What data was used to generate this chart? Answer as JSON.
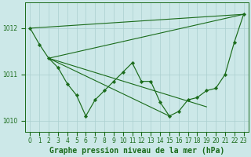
{
  "title": "Graphe pression niveau de la mer (hPa)",
  "bg_color": "#cce8e8",
  "grid_color": "#aacfcf",
  "line_color": "#1a6b1a",
  "marker_color": "#1a6b1a",
  "series": [
    [
      1012.0,
      1011.65,
      1011.35,
      1011.15,
      1010.8,
      1010.55,
      1010.1,
      1010.45,
      1010.65,
      1010.85,
      1011.05,
      1011.25,
      1010.85,
      1010.85,
      1010.4,
      1010.1,
      1010.2,
      1010.45,
      1010.5,
      1010.65,
      1010.7,
      1011.0,
      1011.7,
      1012.3
    ],
    [
      1012.0,
      1011.65,
      1011.35,
      1011.15,
      1011.15,
      1011.15,
      1011.15,
      1011.05,
      1010.95,
      1010.85,
      1010.75,
      1010.65,
      1010.55,
      1010.5,
      1010.45,
      1010.4,
      1010.35,
      1010.3,
      1010.3,
      1010.3,
      1010.7,
      1011.0,
      1011.7,
      1012.3
    ],
    [
      1012.0,
      1011.65,
      1011.35,
      1011.15,
      1011.15,
      1011.15,
      1011.15,
      1011.15,
      1011.1,
      1011.1,
      1011.0,
      1010.9,
      1010.75,
      1010.65,
      1010.55,
      1010.45,
      1010.35,
      1010.3,
      1010.3,
      1010.3,
      1010.7,
      1011.0,
      1011.7,
      1012.3
    ],
    [
      1012.0,
      1011.65,
      1011.35,
      1011.15,
      1011.15,
      1011.15,
      1011.15,
      1011.15,
      1011.15,
      1011.1,
      1011.05,
      1010.95,
      1010.85,
      1010.75,
      1010.65,
      1010.55,
      1010.5,
      1010.45,
      1010.4,
      1010.7,
      1010.7,
      1011.0,
      1011.7,
      1012.3
    ]
  ],
  "ylim": [
    1009.75,
    1012.55
  ],
  "xlim": [
    -0.5,
    23.5
  ],
  "yticks": [
    1010,
    1011,
    1012
  ],
  "xticks": [
    0,
    1,
    2,
    3,
    4,
    5,
    6,
    7,
    8,
    9,
    10,
    11,
    12,
    13,
    14,
    15,
    16,
    17,
    18,
    19,
    20,
    21,
    22,
    23
  ],
  "title_fontsize": 7,
  "tick_fontsize": 5.5
}
